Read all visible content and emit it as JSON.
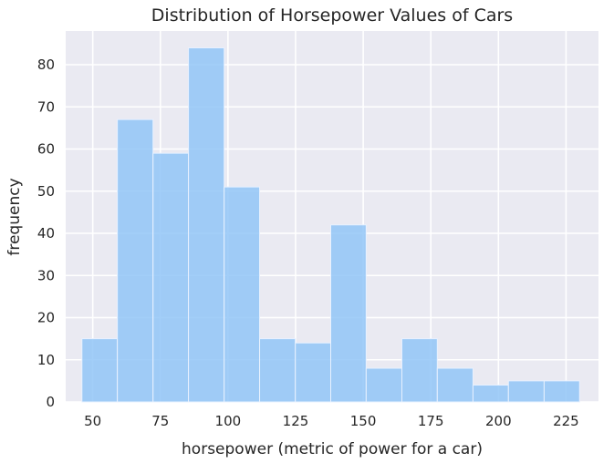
{
  "chart_data": {
    "type": "bar",
    "title": "Distribution of Horsepower Values of Cars",
    "xlabel": "horsepower (metric of power for a car)",
    "ylabel": "frequency",
    "xlim": [
      40,
      237
    ],
    "ylim": [
      0,
      88
    ],
    "xticks": [
      50,
      75,
      100,
      125,
      150,
      175,
      200,
      225
    ],
    "yticks": [
      0,
      10,
      20,
      30,
      40,
      50,
      60,
      70,
      80
    ],
    "bin_edges": [
      46,
      59.1,
      72.3,
      85.4,
      98.6,
      111.7,
      124.9,
      138,
      151.1,
      164.3,
      177.4,
      190.6,
      203.7,
      216.9,
      230
    ],
    "values": [
      15,
      67,
      59,
      84,
      51,
      15,
      14,
      42,
      8,
      15,
      8,
      4,
      5,
      5
    ],
    "grid": true,
    "colors": {
      "background": "#eaeaf2",
      "bar": "#92c5f7",
      "grid": "#ffffff"
    }
  }
}
